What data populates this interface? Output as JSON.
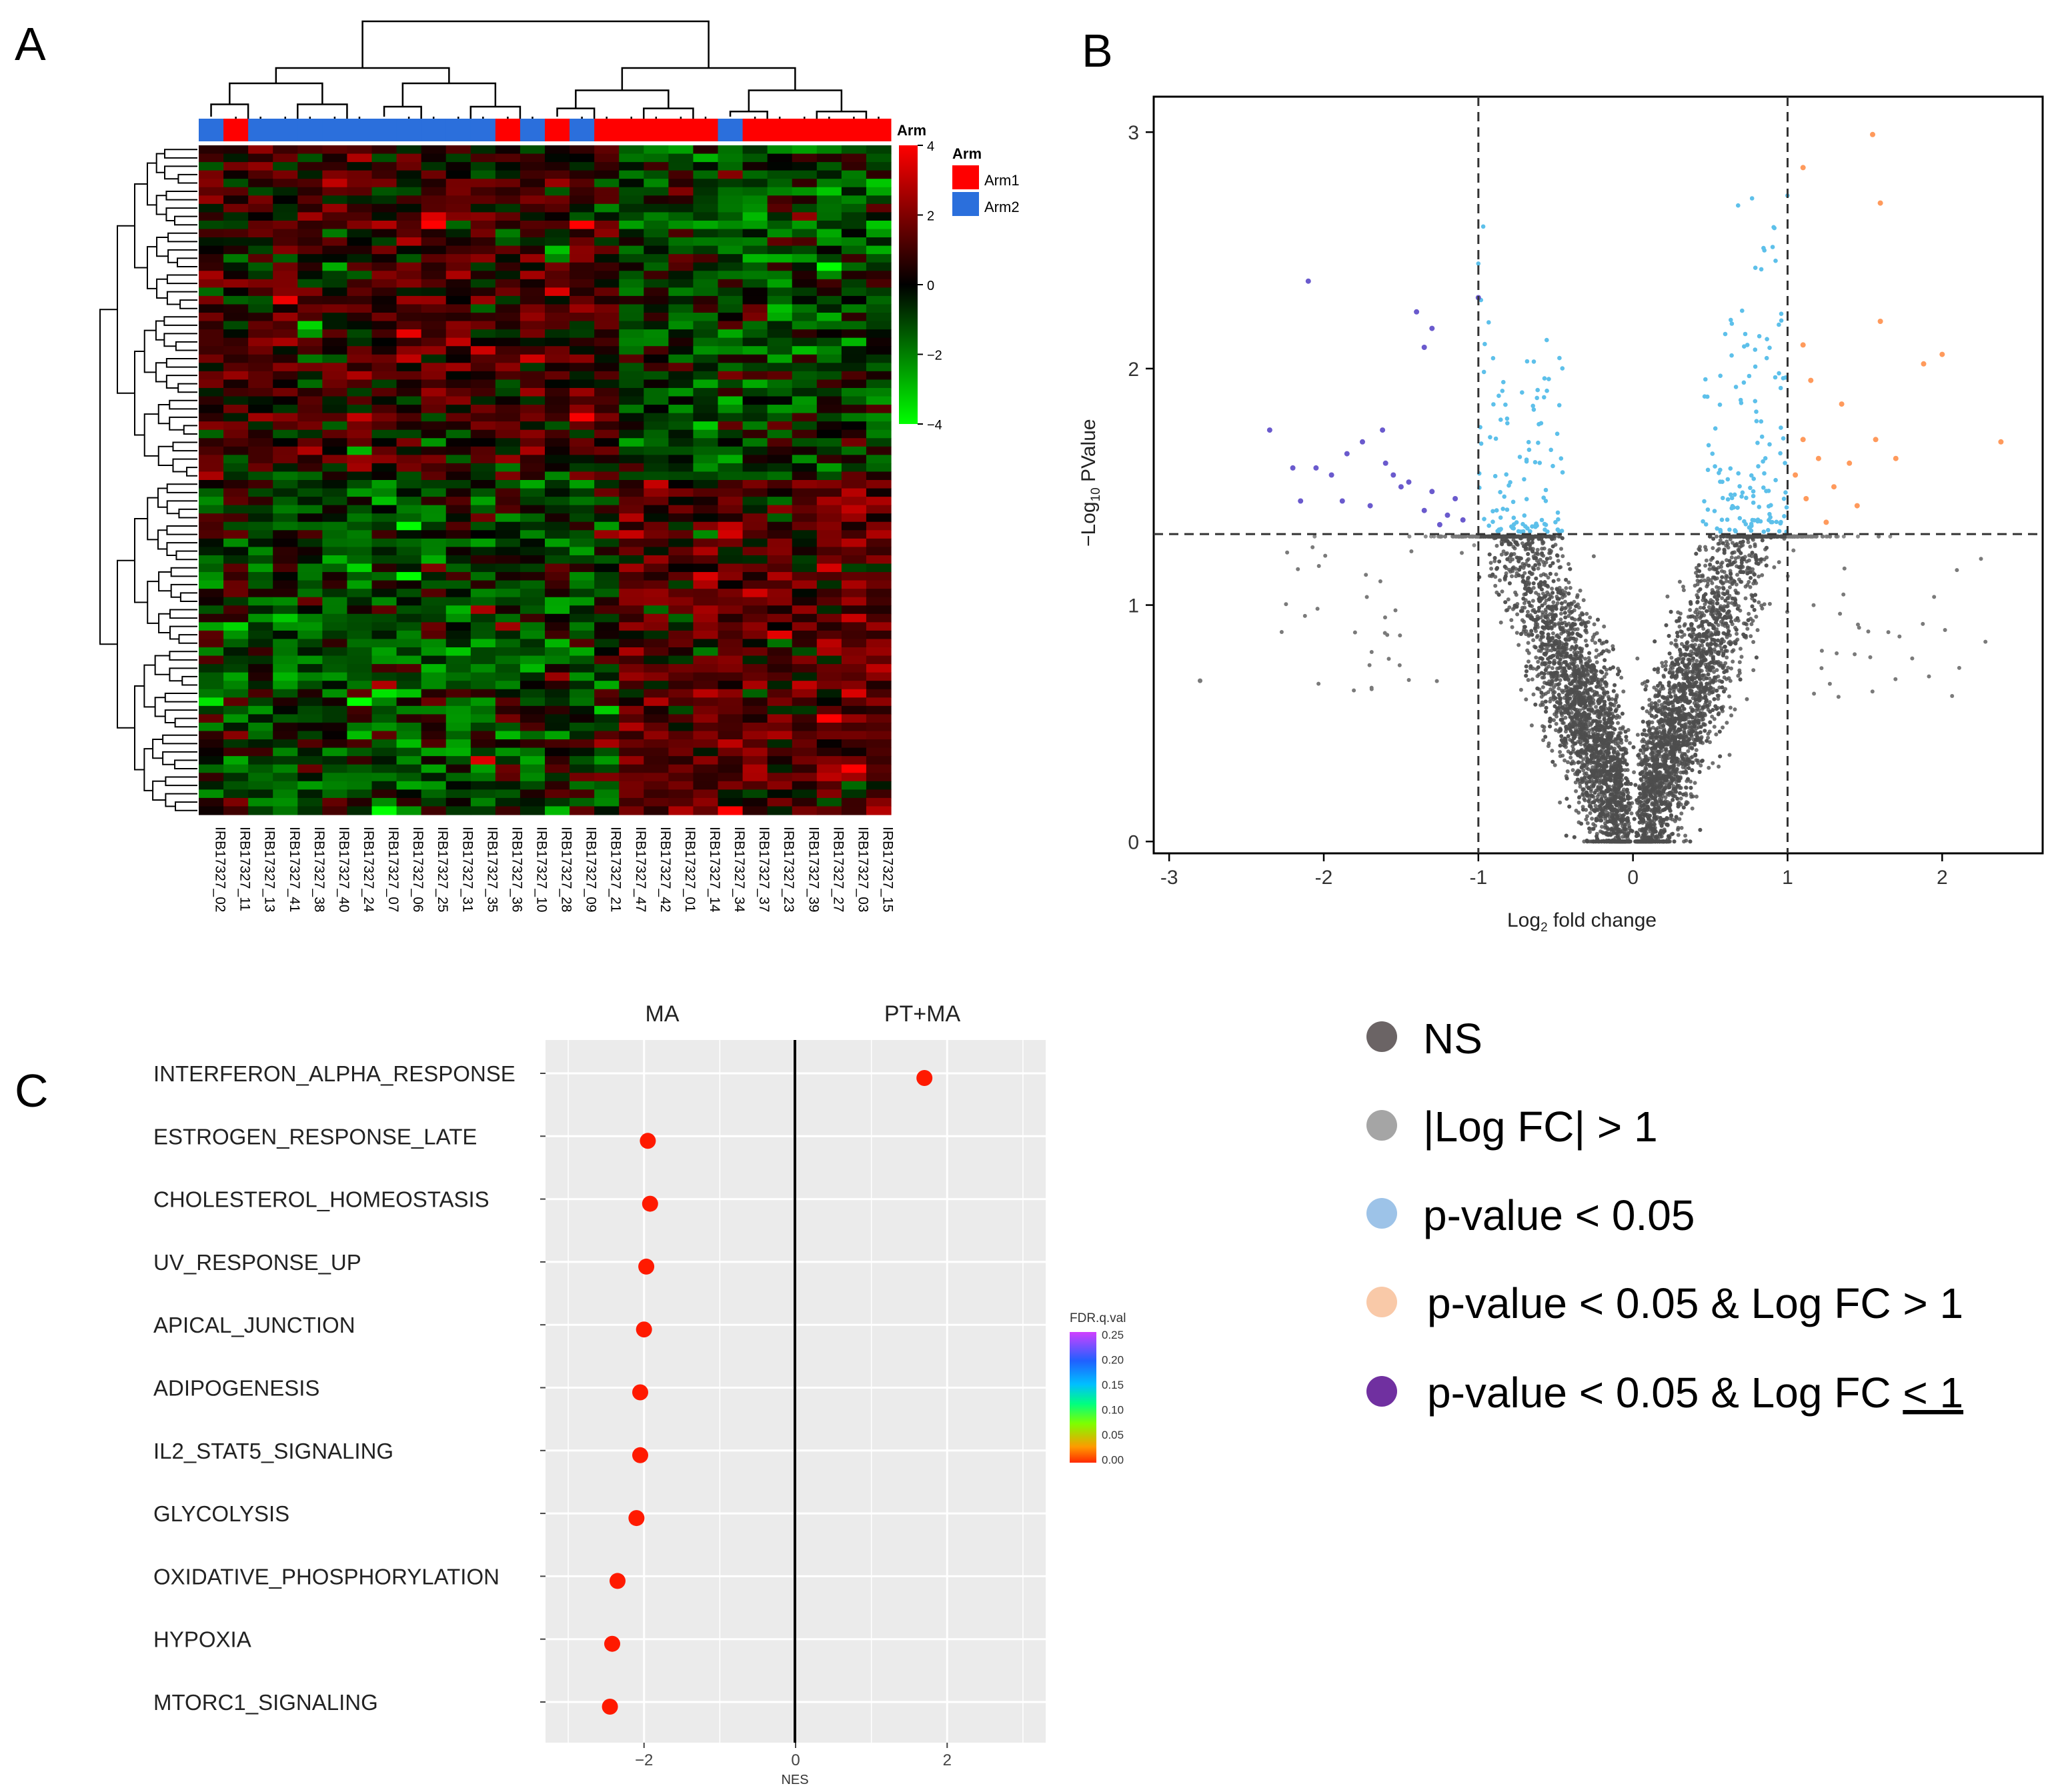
{
  "panels": {
    "a": "A",
    "b": "B",
    "c": "C"
  },
  "chart_data": [
    {
      "type": "heatmap",
      "panel": "A",
      "columns": [
        "IRB17327_02",
        "IRB17327_11",
        "IRB17327_13",
        "IRB17327_41",
        "IRB17327_38",
        "IRB17327_40",
        "IRB17327_24",
        "IRB17327_07",
        "IRB17327_06",
        "IRB17327_25",
        "IRB17327_31",
        "IRB17327_35",
        "IRB17327_36",
        "IRB17327_10",
        "IRB17327_28",
        "IRB17327_09",
        "IRB17327_21",
        "IRB17327_47",
        "IRB17327_42",
        "IRB17327_01",
        "IRB17327_14",
        "IRB17327_34",
        "IRB17327_37",
        "IRB17327_23",
        "IRB17327_39",
        "IRB17327_27",
        "IRB17327_03",
        "IRB17327_15"
      ],
      "column_arm": [
        "Arm2",
        "Arm1",
        "Arm2",
        "Arm2",
        "Arm2",
        "Arm2",
        "Arm2",
        "Arm2",
        "Arm2",
        "Arm2",
        "Arm2",
        "Arm2",
        "Arm1",
        "Arm2",
        "Arm1",
        "Arm2",
        "Arm1",
        "Arm1",
        "Arm1",
        "Arm1",
        "Arm1",
        "Arm2",
        "Arm1",
        "Arm1",
        "Arm1",
        "Arm1",
        "Arm1",
        "Arm1"
      ],
      "annotation_title": "Arm",
      "legend": {
        "title": "Arm",
        "entries": [
          {
            "label": "Arm1",
            "color": "#ff0000"
          },
          {
            "label": "Arm2",
            "color": "#2b6fdc"
          }
        ]
      },
      "color_scale": {
        "ticks": [
          "4",
          "2",
          "0",
          "−2",
          "−4"
        ],
        "range": [
          -4,
          4
        ],
        "high_color": "#ff0000",
        "mid_color": "#000000",
        "low_color": "#00ff00"
      },
      "n_rows": 80
    },
    {
      "type": "scatter",
      "panel": "B",
      "subtype": "volcano",
      "xlabel_prefix": "Log",
      "xlabel_sub": "2",
      "xlabel_suffix": " fold change",
      "ylabel_prefix": "−Log",
      "ylabel_sub": "10",
      "ylabel_suffix": " PValue",
      "xlim": [
        -3.1,
        2.65
      ],
      "ylim": [
        -0.05,
        3.15
      ],
      "xticks": [
        "-3",
        "-2",
        "-1",
        "0",
        "1",
        "2"
      ],
      "yticks": [
        "0",
        "1",
        "2",
        "3"
      ],
      "x_thresholds": [
        -1,
        1
      ],
      "y_threshold": 1.3,
      "colors": {
        "NS": "#4d4d4d",
        "p_up": "#ff9a5c",
        "p_down": "#6a5acd",
        "p_only": "#5dc0ea",
        "fc_only": "#7a7a7a"
      },
      "points_sig_up": [
        [
          1.55,
          2.99
        ],
        [
          1.6,
          2.7
        ],
        [
          1.1,
          2.85
        ],
        [
          1.6,
          2.2
        ],
        [
          1.88,
          2.02
        ],
        [
          2.0,
          2.06
        ],
        [
          1.1,
          2.1
        ],
        [
          1.15,
          1.95
        ],
        [
          1.1,
          1.7
        ],
        [
          1.2,
          1.62
        ],
        [
          1.4,
          1.6
        ],
        [
          1.57,
          1.7
        ],
        [
          1.7,
          1.62
        ],
        [
          1.3,
          1.5
        ],
        [
          1.05,
          1.55
        ],
        [
          1.12,
          1.45
        ],
        [
          1.25,
          1.35
        ],
        [
          1.45,
          1.42
        ],
        [
          2.38,
          1.69
        ],
        [
          1.35,
          1.85
        ]
      ],
      "points_sig_down": [
        [
          -2.1,
          2.37
        ],
        [
          -1.4,
          2.24
        ],
        [
          -1.3,
          2.17
        ],
        [
          -1.35,
          2.09
        ],
        [
          -1.0,
          2.3
        ],
        [
          -2.35,
          1.74
        ],
        [
          -1.62,
          1.74
        ],
        [
          -1.75,
          1.69
        ],
        [
          -1.85,
          1.64
        ],
        [
          -2.05,
          1.58
        ],
        [
          -2.2,
          1.58
        ],
        [
          -1.95,
          1.55
        ],
        [
          -1.6,
          1.6
        ],
        [
          -1.55,
          1.55
        ],
        [
          -1.45,
          1.52
        ],
        [
          -1.3,
          1.48
        ],
        [
          -2.15,
          1.44
        ],
        [
          -1.88,
          1.44
        ],
        [
          -1.7,
          1.42
        ],
        [
          -1.35,
          1.4
        ],
        [
          -1.2,
          1.38
        ],
        [
          -1.1,
          1.36
        ],
        [
          -1.25,
          1.34
        ],
        [
          -1.5,
          1.5
        ],
        [
          -1.15,
          1.45
        ]
      ]
    },
    {
      "type": "scatter",
      "panel": "C",
      "subtype": "dot",
      "facets": [
        "MA",
        "PT+MA"
      ],
      "categories": [
        "INTERFERON_ALPHA_RESPONSE",
        "ESTROGEN_RESPONSE_LATE",
        "CHOLESTEROL_HOMEOSTASIS",
        "UV_RESPONSE_UP",
        "APICAL_JUNCTION",
        "ADIPOGENESIS",
        "IL2_STAT5_SIGNALING",
        "GLYCOLYSIS",
        "OXIDATIVE_PHOSPHORYLATION",
        "HYPOXIA",
        "MTORC1_SIGNALING"
      ],
      "nes": [
        1.7,
        -1.95,
        -1.92,
        -1.97,
        -2.0,
        -2.05,
        -2.05,
        -2.1,
        -2.35,
        -2.42,
        -2.45
      ],
      "fdr_q": [
        0.01,
        0.0,
        0.0,
        0.0,
        0.0,
        0.0,
        0.0,
        0.0,
        0.0,
        0.0,
        0.0
      ],
      "xlabel": "NES",
      "xlim": [
        -3.3,
        3.3
      ],
      "xticks": [
        "−2",
        "0",
        "2"
      ],
      "legend": {
        "title": "FDR.q.val",
        "ticks": [
          "0.25",
          "0.20",
          "0.15",
          "0.10",
          "0.05",
          "0.00"
        ]
      }
    }
  ],
  "legend_b": {
    "entries": [
      {
        "label": "NS",
        "color": "#6b6465"
      },
      {
        "label": "|Log FC| > 1",
        "color": "#a5a5a5"
      },
      {
        "label": "p-value < 0.05",
        "color": "#9dc3e8"
      },
      {
        "label": "p-value < 0.05 & Log FC > 1",
        "color": "#f9c9a8"
      },
      {
        "label_prefix": "p-value < 0.05 & Log FC ",
        "label_underlined": "< 1",
        "color": "#7030a0"
      }
    ]
  }
}
